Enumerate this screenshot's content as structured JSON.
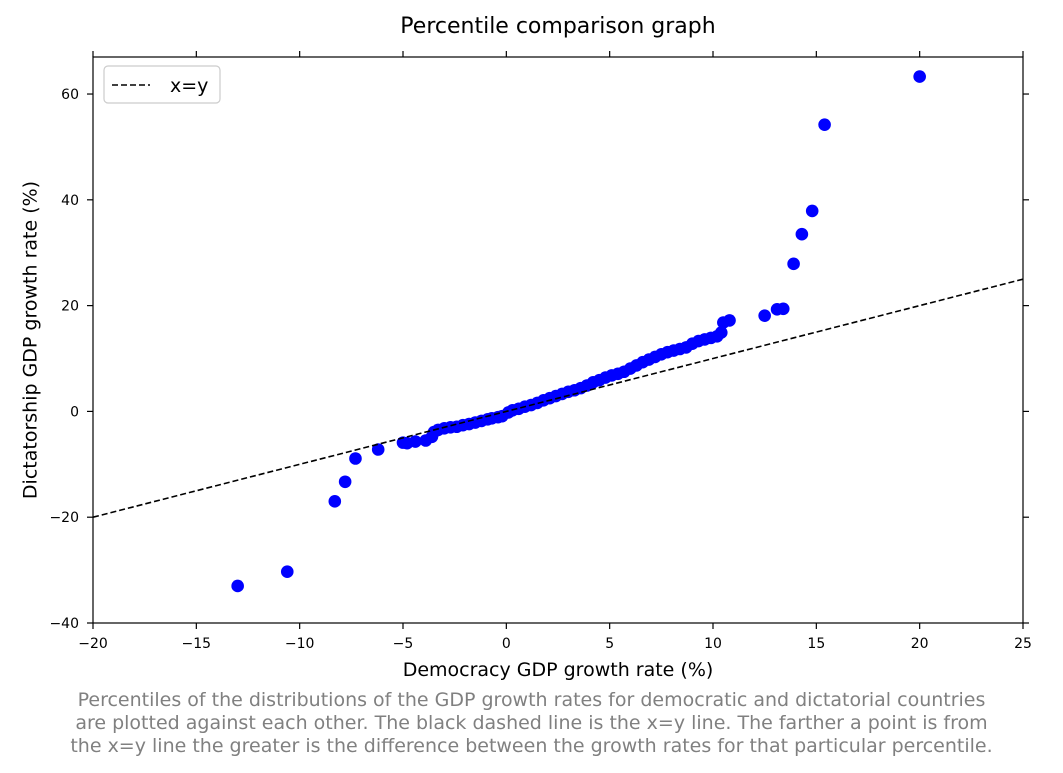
{
  "chart_data": {
    "type": "scatter",
    "title": "Percentile comparison graph",
    "xlabel": "Democracy GDP growth rate (%)",
    "ylabel": "Dictatorship GDP growth rate (%)",
    "xlim": [
      -20,
      25
    ],
    "ylim": [
      -40,
      67
    ],
    "xticks": [
      -20,
      -15,
      -10,
      -5,
      0,
      5,
      10,
      15,
      20,
      25
    ],
    "yticks": [
      -40,
      -20,
      0,
      20,
      40,
      60
    ],
    "grid": false,
    "legend": {
      "placement": "top-left",
      "entries": [
        "x=y"
      ]
    },
    "point_color": "#0000ff",
    "reference_line": {
      "label": "x=y",
      "style": "dashed",
      "color": "#000000",
      "x": [
        -20,
        25
      ],
      "y": [
        -20,
        25
      ]
    },
    "points": [
      [
        -13.0,
        -33.0
      ],
      [
        -10.6,
        -30.3
      ],
      [
        -8.3,
        -17.0
      ],
      [
        -7.8,
        -13.3
      ],
      [
        -7.3,
        -8.9
      ],
      [
        -6.2,
        -7.2
      ],
      [
        -5.0,
        -5.9
      ],
      [
        -4.8,
        -6.0
      ],
      [
        -4.4,
        -5.7
      ],
      [
        -3.9,
        -5.5
      ],
      [
        -3.6,
        -4.8
      ],
      [
        -3.5,
        -3.9
      ],
      [
        -3.3,
        -3.5
      ],
      [
        -3.0,
        -3.2
      ],
      [
        -2.7,
        -3.0
      ],
      [
        -2.4,
        -2.9
      ],
      [
        -2.1,
        -2.6
      ],
      [
        -1.8,
        -2.4
      ],
      [
        -1.5,
        -2.1
      ],
      [
        -1.2,
        -1.8
      ],
      [
        -0.9,
        -1.5
      ],
      [
        -0.7,
        -1.3
      ],
      [
        -0.4,
        -1.1
      ],
      [
        -0.2,
        -0.9
      ],
      [
        0.1,
        -0.2
      ],
      [
        0.3,
        0.2
      ],
      [
        0.6,
        0.5
      ],
      [
        0.9,
        0.9
      ],
      [
        1.2,
        1.2
      ],
      [
        1.5,
        1.6
      ],
      [
        1.8,
        2.1
      ],
      [
        2.1,
        2.5
      ],
      [
        2.4,
        2.9
      ],
      [
        2.7,
        3.3
      ],
      [
        3.0,
        3.7
      ],
      [
        3.3,
        4.0
      ],
      [
        3.6,
        4.4
      ],
      [
        3.9,
        4.9
      ],
      [
        4.2,
        5.5
      ],
      [
        4.5,
        5.9
      ],
      [
        4.8,
        6.4
      ],
      [
        5.1,
        6.8
      ],
      [
        5.4,
        7.1
      ],
      [
        5.7,
        7.5
      ],
      [
        6.0,
        8.1
      ],
      [
        6.3,
        8.7
      ],
      [
        6.6,
        9.3
      ],
      [
        6.9,
        9.8
      ],
      [
        7.2,
        10.3
      ],
      [
        7.5,
        10.8
      ],
      [
        7.8,
        11.2
      ],
      [
        8.1,
        11.5
      ],
      [
        8.4,
        11.8
      ],
      [
        8.7,
        12.1
      ],
      [
        9.0,
        12.8
      ],
      [
        9.3,
        13.3
      ],
      [
        9.6,
        13.6
      ],
      [
        9.9,
        13.9
      ],
      [
        10.2,
        14.2
      ],
      [
        10.4,
        14.9
      ],
      [
        10.5,
        16.8
      ],
      [
        10.8,
        17.2
      ],
      [
        12.5,
        18.1
      ],
      [
        13.1,
        19.3
      ],
      [
        13.4,
        19.4
      ],
      [
        13.9,
        27.9
      ],
      [
        14.3,
        33.5
      ],
      [
        14.8,
        37.9
      ],
      [
        15.4,
        54.2
      ],
      [
        20.0,
        63.3
      ]
    ]
  },
  "caption": [
    "Percentiles of the distributions of the GDP growth rates for democratic and dictatorial countries",
    "are plotted against each other. The black dashed line is the x=y line. The farther a point is from",
    "the x=y line the greater is the difference between the growth rates for that particular percentile."
  ]
}
